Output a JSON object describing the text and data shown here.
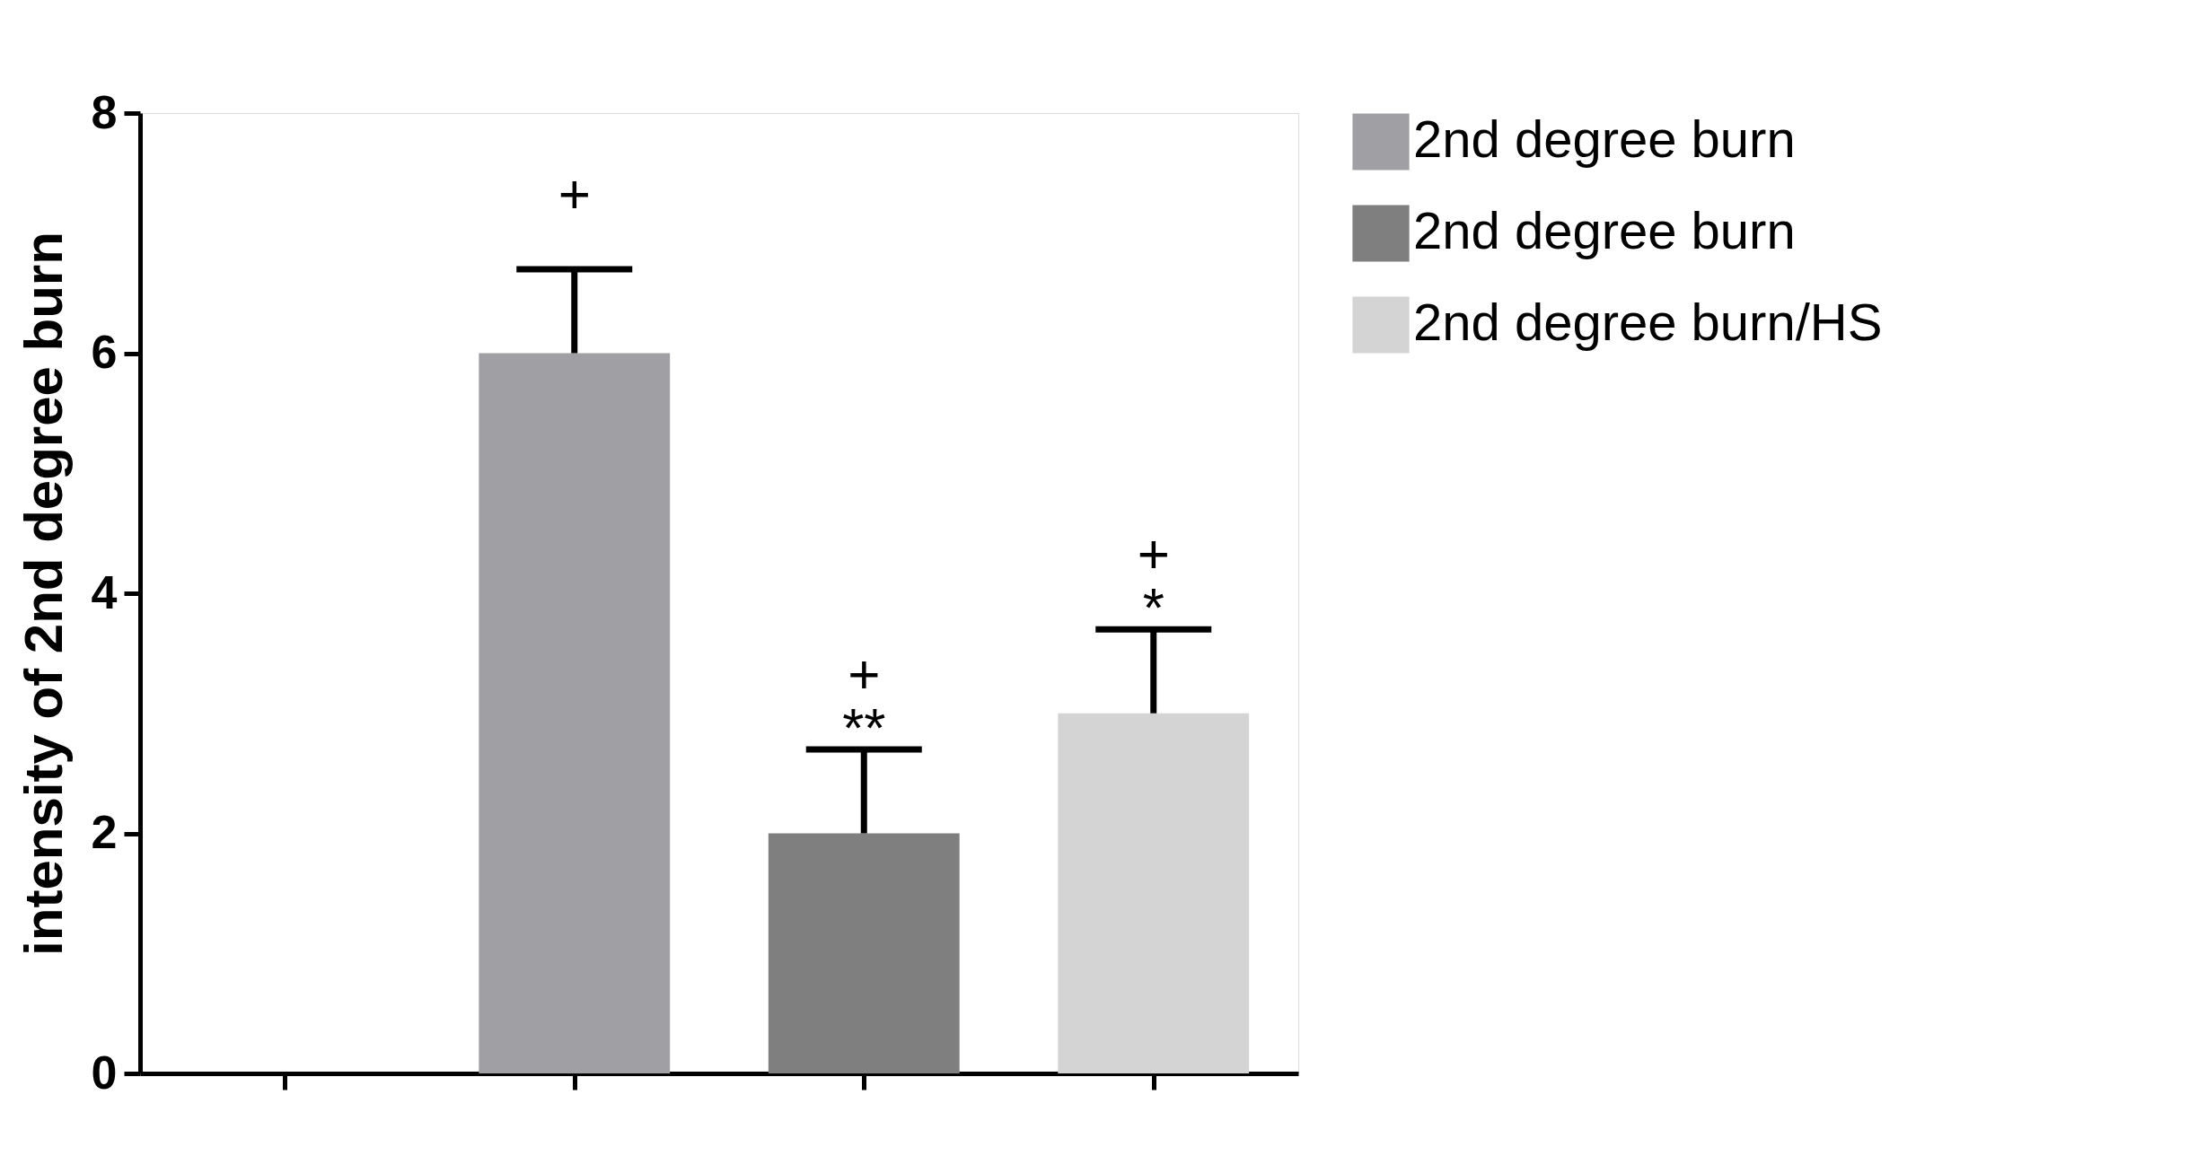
{
  "chart_data": {
    "type": "bar",
    "ylabel": "intensity of 2nd degree burn",
    "categories": [
      null,
      null,
      null,
      null
    ],
    "series": [
      {
        "name": "2nd degree burn",
        "color": "#a0a0a4",
        "values": [
          null,
          6,
          null,
          null
        ],
        "errors": [
          null,
          0.7,
          null,
          null
        ],
        "value_labels": [
          null,
          "+",
          null,
          null
        ]
      },
      {
        "name": "2nd degree burn",
        "color": "#7f7f7f",
        "values": [
          null,
          null,
          2,
          null
        ],
        "errors": [
          null,
          null,
          0.7,
          null
        ],
        "value_labels": [
          null,
          null,
          "+\n**",
          null
        ]
      },
      {
        "name": "2nd degree burn/HS",
        "color": "#d4d4d4",
        "values": [
          null,
          null,
          null,
          3
        ],
        "errors": [
          null,
          null,
          null,
          0.7
        ],
        "value_labels": [
          null,
          null,
          null,
          "+\n*"
        ]
      }
    ],
    "ylim": [
      0,
      8
    ],
    "yticks": [
      0,
      2,
      4,
      6,
      8
    ],
    "grid": false,
    "legend": "right"
  }
}
